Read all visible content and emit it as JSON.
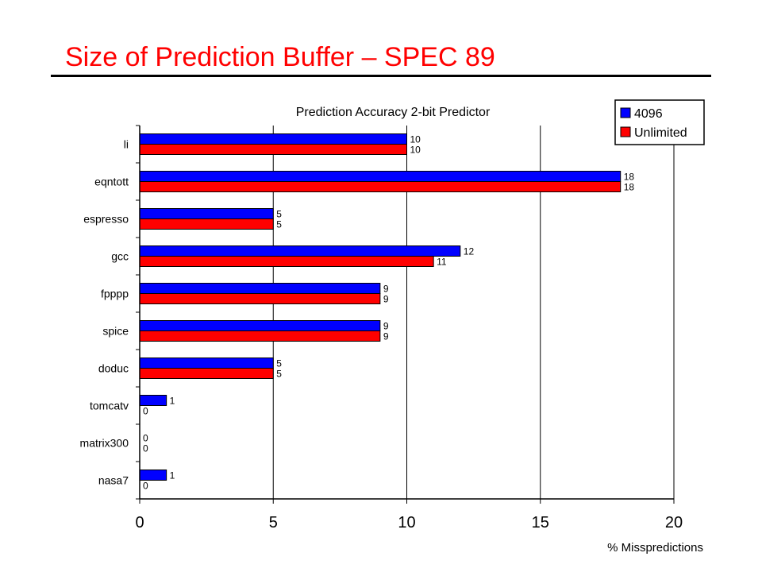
{
  "slide": {
    "title": "Size of Prediction Buffer – SPEC 89"
  },
  "colors": {
    "title": "#ff0000",
    "series_4096": "#0000ff",
    "series_unlimited": "#ff0000"
  },
  "chart_data": {
    "type": "bar",
    "orientation": "horizontal",
    "title": "Prediction Accuracy 2-bit Predictor",
    "xlabel": "% Misspredictions",
    "ylabel": "",
    "xlim": [
      0,
      20
    ],
    "xticks": [
      0,
      5,
      10,
      15,
      20
    ],
    "grid": true,
    "legend_position": "top-right",
    "categories": [
      "li",
      "eqntott",
      "espresso",
      "gcc",
      "fpppp",
      "spice",
      "doduc",
      "tomcatv",
      "matrix300",
      "nasa7"
    ],
    "series": [
      {
        "name": "4096",
        "color": "#0000ff",
        "values": [
          10,
          18,
          5,
          12,
          9,
          9,
          5,
          1,
          0,
          1
        ]
      },
      {
        "name": "Unlimited",
        "color": "#ff0000",
        "values": [
          10,
          18,
          5,
          11,
          9,
          9,
          5,
          0,
          0,
          0
        ]
      }
    ]
  }
}
